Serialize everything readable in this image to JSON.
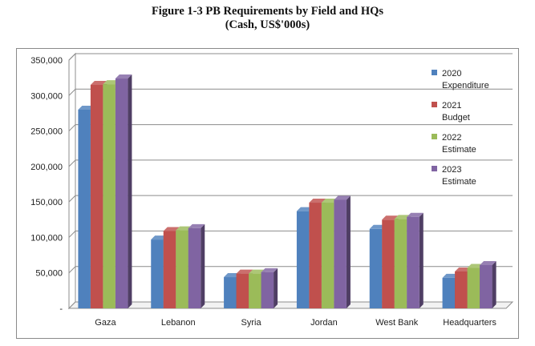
{
  "figure": {
    "title_line1": "Figure 1-3 PB Requirements by Field and HQs",
    "title_line2": "(Cash, US$'000s)"
  },
  "chart_data": {
    "type": "bar",
    "style": "3d-clustered-column",
    "categories": [
      "Gaza",
      "Lebanon",
      "Syria",
      "Jordan",
      "West Bank",
      "Headquarters"
    ],
    "series": [
      {
        "name_lines": [
          "2020",
          "Expenditure"
        ],
        "color": "#4F81BD",
        "values": [
          280000,
          97000,
          44000,
          137000,
          112000,
          43000
        ]
      },
      {
        "name_lines": [
          "2021",
          "Budget"
        ],
        "color": "#C0504D",
        "values": [
          315000,
          109000,
          49000,
          149000,
          125000,
          52000
        ]
      },
      {
        "name_lines": [
          "2022",
          "Estimate"
        ],
        "color": "#9BBB59",
        "values": [
          316000,
          110000,
          49000,
          149000,
          126000,
          57000
        ]
      },
      {
        "name_lines": [
          "2023",
          "Estimate"
        ],
        "color": "#8064A2",
        "values": [
          324000,
          113000,
          51000,
          153000,
          129000,
          61000
        ]
      }
    ],
    "y_ticks": [
      {
        "value": 0,
        "label": "-"
      },
      {
        "value": 50000,
        "label": "50,000"
      },
      {
        "value": 100000,
        "label": "100,000"
      },
      {
        "value": 150000,
        "label": "150,000"
      },
      {
        "value": 200000,
        "label": "200,000"
      },
      {
        "value": 250000,
        "label": "250,000"
      },
      {
        "value": 300000,
        "label": "300,000"
      },
      {
        "value": 350000,
        "label": "350,000"
      }
    ],
    "ylim": [
      0,
      350000
    ],
    "grid": true,
    "legend_position": "right"
  }
}
